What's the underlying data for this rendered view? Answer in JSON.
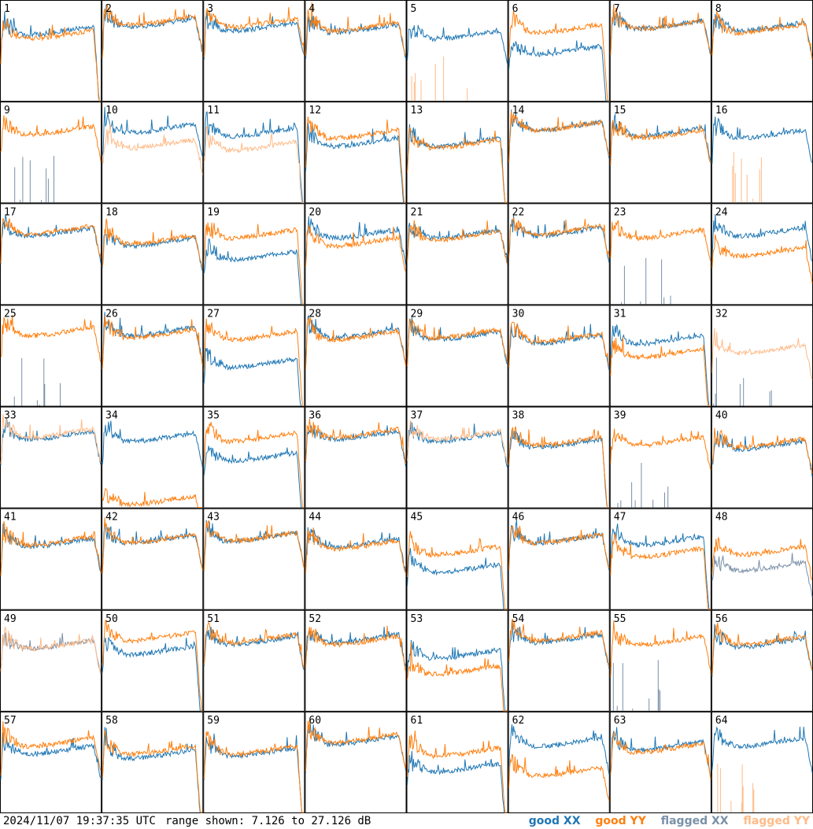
{
  "footer": {
    "timestamp": "2024/11/07 19:37:35 UTC",
    "range": "range shown: 7.126 to 27.126 dB"
  },
  "legend": {
    "good_xx": "good XX",
    "good_yy": "good YY",
    "flagged_xx": "flagged XX",
    "flagged_yy": "flagged YY"
  },
  "colors": {
    "good_xx": "#1f77b4",
    "good_yy": "#ff7f0e",
    "flagged_xx": "#7a90a8",
    "flagged_yy": "#ffbb88",
    "frame": "#000000"
  },
  "chart_data": {
    "type": "line",
    "ylim": [
      7.126,
      27.126
    ],
    "units": "dB",
    "grid": {
      "rows": 8,
      "cols": 8
    },
    "panels": [
      {
        "id": "1",
        "xx": "good",
        "yy": "good",
        "xx_level": 0.7,
        "yy_level": 0.66,
        "drop": true
      },
      {
        "id": "2",
        "xx": "good",
        "yy": "good",
        "xx_level": 0.78,
        "yy_level": 0.8,
        "drop": false
      },
      {
        "id": "3",
        "xx": "good",
        "yy": "good",
        "xx_level": 0.74,
        "yy_level": 0.78,
        "drop": false
      },
      {
        "id": "4",
        "xx": "good",
        "yy": "good",
        "xx_level": 0.72,
        "yy_level": 0.74,
        "drop": false
      },
      {
        "id": "5",
        "xx": "good",
        "yy": "flagged",
        "xx_level": 0.66,
        "yy_level": 0.0,
        "drop": false
      },
      {
        "id": "6",
        "xx": "good",
        "yy": "good",
        "xx_level": 0.5,
        "yy_level": 0.72,
        "drop": true
      },
      {
        "id": "7",
        "xx": "good",
        "yy": "good",
        "xx_level": 0.76,
        "yy_level": 0.76,
        "drop": false
      },
      {
        "id": "8",
        "xx": "good",
        "yy": "good",
        "xx_level": 0.74,
        "yy_level": 0.72,
        "drop": false
      },
      {
        "id": "9",
        "xx": "flagged",
        "yy": "good",
        "xx_level": 0.0,
        "yy_level": 0.72,
        "drop": false
      },
      {
        "id": "10",
        "xx": "good",
        "yy": "flagged",
        "xx_level": 0.74,
        "yy_level": 0.58,
        "drop": false
      },
      {
        "id": "11",
        "xx": "good",
        "yy": "flagged",
        "xx_level": 0.7,
        "yy_level": 0.56,
        "drop": true
      },
      {
        "id": "12",
        "xx": "good",
        "yy": "good",
        "xx_level": 0.6,
        "yy_level": 0.68,
        "drop": true
      },
      {
        "id": "13",
        "xx": "good",
        "yy": "good",
        "xx_level": 0.6,
        "yy_level": 0.58,
        "drop": true
      },
      {
        "id": "14",
        "xx": "good",
        "yy": "good",
        "xx_level": 0.76,
        "yy_level": 0.76,
        "drop": false
      },
      {
        "id": "15",
        "xx": "good",
        "yy": "good",
        "xx_level": 0.7,
        "yy_level": 0.68,
        "drop": false
      },
      {
        "id": "16",
        "xx": "good",
        "yy": "flagged",
        "xx_level": 0.68,
        "yy_level": 0.0,
        "drop": false
      },
      {
        "id": "17",
        "xx": "good",
        "yy": "good",
        "xx_level": 0.72,
        "yy_level": 0.74,
        "drop": false
      },
      {
        "id": "18",
        "xx": "good",
        "yy": "good",
        "xx_level": 0.62,
        "yy_level": 0.64,
        "drop": false
      },
      {
        "id": "19",
        "xx": "good",
        "yy": "good",
        "xx_level": 0.48,
        "yy_level": 0.7,
        "drop": true
      },
      {
        "id": "20",
        "xx": "good",
        "yy": "good",
        "xx_level": 0.7,
        "yy_level": 0.62,
        "drop": false
      },
      {
        "id": "21",
        "xx": "good",
        "yy": "good",
        "xx_level": 0.7,
        "yy_level": 0.68,
        "drop": false
      },
      {
        "id": "22",
        "xx": "good",
        "yy": "good",
        "xx_level": 0.72,
        "yy_level": 0.74,
        "drop": false
      },
      {
        "id": "23",
        "xx": "flagged",
        "yy": "good",
        "xx_level": 0.0,
        "yy_level": 0.7,
        "drop": false
      },
      {
        "id": "24",
        "xx": "good",
        "yy": "good",
        "xx_level": 0.72,
        "yy_level": 0.52,
        "drop": false
      },
      {
        "id": "25",
        "xx": "flagged",
        "yy": "good",
        "xx_level": 0.0,
        "yy_level": 0.74,
        "drop": false
      },
      {
        "id": "26",
        "xx": "good",
        "yy": "good",
        "xx_level": 0.74,
        "yy_level": 0.72,
        "drop": false
      },
      {
        "id": "27",
        "xx": "good",
        "yy": "good",
        "xx_level": 0.42,
        "yy_level": 0.7,
        "drop": true
      },
      {
        "id": "28",
        "xx": "good",
        "yy": "good",
        "xx_level": 0.72,
        "yy_level": 0.7,
        "drop": false
      },
      {
        "id": "29",
        "xx": "good",
        "yy": "good",
        "xx_level": 0.7,
        "yy_level": 0.72,
        "drop": false
      },
      {
        "id": "30",
        "xx": "good",
        "yy": "good",
        "xx_level": 0.66,
        "yy_level": 0.68,
        "drop": false
      },
      {
        "id": "31",
        "xx": "good",
        "yy": "good",
        "xx_level": 0.66,
        "yy_level": 0.52,
        "drop": true
      },
      {
        "id": "32",
        "xx": "flagged",
        "yy": "flagged",
        "xx_level": 0.0,
        "yy_level": 0.56,
        "drop": false
      },
      {
        "id": "33",
        "xx": "good",
        "yy": "flagged",
        "xx_level": 0.72,
        "yy_level": 0.74,
        "drop": false
      },
      {
        "id": "34",
        "xx": "good",
        "yy": "good",
        "xx_level": 0.7,
        "yy_level": 0.06,
        "drop": false
      },
      {
        "id": "35",
        "xx": "good",
        "yy": "good",
        "xx_level": 0.5,
        "yy_level": 0.7,
        "drop": true
      },
      {
        "id": "36",
        "xx": "good",
        "yy": "good",
        "xx_level": 0.72,
        "yy_level": 0.74,
        "drop": false
      },
      {
        "id": "37",
        "xx": "good",
        "yy": "flagged",
        "xx_level": 0.7,
        "yy_level": 0.72,
        "drop": false
      },
      {
        "id": "38",
        "xx": "good",
        "yy": "good",
        "xx_level": 0.64,
        "yy_level": 0.66,
        "drop": true
      },
      {
        "id": "39",
        "xx": "flagged",
        "yy": "good",
        "xx_level": 0.0,
        "yy_level": 0.66,
        "drop": false
      },
      {
        "id": "40",
        "xx": "good",
        "yy": "good",
        "xx_level": 0.62,
        "yy_level": 0.64,
        "drop": false
      },
      {
        "id": "41",
        "xx": "good",
        "yy": "good",
        "xx_level": 0.66,
        "yy_level": 0.68,
        "drop": false
      },
      {
        "id": "42",
        "xx": "good",
        "yy": "good",
        "xx_level": 0.7,
        "yy_level": 0.7,
        "drop": false
      },
      {
        "id": "43",
        "xx": "good",
        "yy": "good",
        "xx_level": 0.72,
        "yy_level": 0.72,
        "drop": false
      },
      {
        "id": "44",
        "xx": "good",
        "yy": "good",
        "xx_level": 0.66,
        "yy_level": 0.64,
        "drop": false
      },
      {
        "id": "45",
        "xx": "good",
        "yy": "good",
        "xx_level": 0.4,
        "yy_level": 0.58,
        "drop": true
      },
      {
        "id": "46",
        "xx": "good",
        "yy": "good",
        "xx_level": 0.7,
        "yy_level": 0.7,
        "drop": false
      },
      {
        "id": "47",
        "xx": "good",
        "yy": "good",
        "xx_level": 0.68,
        "yy_level": 0.56,
        "drop": true
      },
      {
        "id": "48",
        "xx": "flagged",
        "yy": "good",
        "xx_level": 0.42,
        "yy_level": 0.58,
        "drop": false
      },
      {
        "id": "49",
        "xx": "flagged",
        "yy": "flagged",
        "xx_level": 0.66,
        "yy_level": 0.66,
        "drop": false
      },
      {
        "id": "50",
        "xx": "good",
        "yy": "good",
        "xx_level": 0.6,
        "yy_level": 0.74,
        "drop": true
      },
      {
        "id": "51",
        "xx": "good",
        "yy": "good",
        "xx_level": 0.7,
        "yy_level": 0.72,
        "drop": false
      },
      {
        "id": "52",
        "xx": "good",
        "yy": "good",
        "xx_level": 0.72,
        "yy_level": 0.7,
        "drop": false
      },
      {
        "id": "53",
        "xx": "good",
        "yy": "good",
        "xx_level": 0.56,
        "yy_level": 0.4,
        "drop": true
      },
      {
        "id": "54",
        "xx": "good",
        "yy": "good",
        "xx_level": 0.72,
        "yy_level": 0.74,
        "drop": false
      },
      {
        "id": "55",
        "xx": "flagged",
        "yy": "good",
        "xx_level": 0.0,
        "yy_level": 0.7,
        "drop": false
      },
      {
        "id": "56",
        "xx": "good",
        "yy": "good",
        "xx_level": 0.68,
        "yy_level": 0.7,
        "drop": false
      },
      {
        "id": "57",
        "xx": "good",
        "yy": "good",
        "xx_level": 0.62,
        "yy_level": 0.7,
        "drop": false
      },
      {
        "id": "58",
        "xx": "good",
        "yy": "good",
        "xx_level": 0.58,
        "yy_level": 0.62,
        "drop": true
      },
      {
        "id": "59",
        "xx": "good",
        "yy": "good",
        "xx_level": 0.6,
        "yy_level": 0.62,
        "drop": true
      },
      {
        "id": "60",
        "xx": "good",
        "yy": "good",
        "xx_level": 0.72,
        "yy_level": 0.74,
        "drop": false
      },
      {
        "id": "61",
        "xx": "good",
        "yy": "good",
        "xx_level": 0.44,
        "yy_level": 0.6,
        "drop": true
      },
      {
        "id": "62",
        "xx": "good",
        "yy": "good",
        "xx_level": 0.7,
        "yy_level": 0.4,
        "drop": false
      },
      {
        "id": "63",
        "xx": "good",
        "yy": "good",
        "xx_level": 0.66,
        "yy_level": 0.64,
        "drop": false
      },
      {
        "id": "64",
        "xx": "good",
        "yy": "flagged",
        "xx_level": 0.7,
        "yy_level": 0.0,
        "drop": false
      }
    ]
  }
}
